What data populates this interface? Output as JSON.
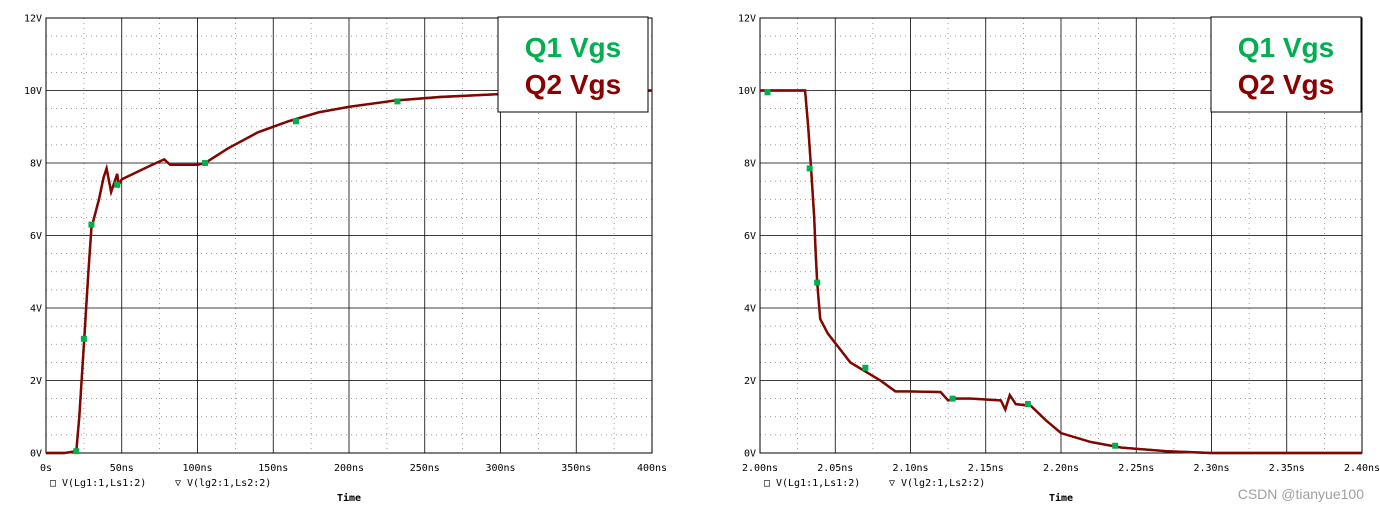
{
  "watermark": "CSDN @tianyue100",
  "colors": {
    "q1": "#00b050",
    "q2": "#8b0000",
    "grid": "#000000"
  },
  "chart_data": [
    {
      "type": "line",
      "xlabel": "Time",
      "ylim": [
        0,
        12
      ],
      "xlim": [
        0,
        400
      ],
      "x_tick_labels": [
        "0s",
        "50ns",
        "100ns",
        "150ns",
        "200ns",
        "250ns",
        "300ns",
        "350ns",
        "400ns"
      ],
      "y_tick_labels": [
        "0V",
        "2V",
        "4V",
        "6V",
        "8V",
        "10V",
        "12V"
      ],
      "bottom_legend": [
        {
          "symbol": "□",
          "text": "V(Lg1:1,Ls1:2)"
        },
        {
          "symbol": "▽",
          "text": "V(lg2:1,Ls2:2)"
        }
      ],
      "inset_labels": [
        "Q1 Vgs",
        "Q2 Vgs"
      ],
      "series": [
        {
          "name": "V(Lg1:1,Ls1:2)",
          "x": [
            0,
            12,
            20,
            22,
            25,
            28,
            30,
            35,
            38,
            40,
            43,
            45,
            47,
            48,
            50,
            60,
            70,
            78,
            82,
            90,
            95,
            100,
            105,
            120,
            140,
            160,
            180,
            200,
            230,
            260,
            300,
            350,
            400
          ],
          "y": [
            0,
            0,
            0.05,
            1.0,
            3.0,
            5.0,
            6.2,
            7.0,
            7.6,
            7.85,
            7.2,
            7.45,
            7.7,
            7.4,
            7.55,
            7.75,
            7.95,
            8.1,
            7.95,
            7.95,
            7.95,
            7.95,
            8.0,
            8.4,
            8.85,
            9.15,
            9.4,
            9.55,
            9.72,
            9.82,
            9.9,
            9.95,
            10.0
          ]
        },
        {
          "name": "V(lg2:1,Ls2:2)",
          "x": [
            0,
            12,
            20,
            22,
            25,
            28,
            30,
            35,
            38,
            40,
            43,
            45,
            47,
            48,
            50,
            60,
            70,
            78,
            82,
            90,
            95,
            100,
            105,
            120,
            140,
            160,
            180,
            200,
            230,
            260,
            300,
            350,
            400
          ],
          "y": [
            0,
            0,
            0.05,
            1.0,
            3.0,
            5.0,
            6.2,
            7.0,
            7.6,
            7.85,
            7.2,
            7.45,
            7.7,
            7.4,
            7.55,
            7.75,
            7.95,
            8.1,
            7.95,
            7.95,
            7.95,
            7.95,
            8.0,
            8.4,
            8.85,
            9.15,
            9.4,
            9.55,
            9.72,
            9.82,
            9.9,
            9.95,
            10.0
          ]
        }
      ],
      "markers": {
        "x": [
          20,
          25,
          30,
          47,
          105,
          165,
          232
        ],
        "y": [
          0.05,
          3.15,
          6.3,
          7.4,
          8.0,
          9.15,
          9.7
        ]
      }
    },
    {
      "type": "line",
      "xlabel": "Time",
      "ylim": [
        0,
        12
      ],
      "xlim": [
        2.0,
        2.4
      ],
      "x_tick_labels": [
        "2.00ns",
        "2.05ns",
        "2.10ns",
        "2.15ns",
        "2.20ns",
        "2.25ns",
        "2.30ns",
        "2.35ns",
        "2.40ns"
      ],
      "y_tick_labels": [
        "0V",
        "2V",
        "4V",
        "6V",
        "8V",
        "10V",
        "12V"
      ],
      "bottom_legend": [
        {
          "symbol": "□",
          "text": "V(Lg1:1,Ls1:2)"
        },
        {
          "symbol": "▽",
          "text": "V(lg2:1,Ls2:2)"
        }
      ],
      "inset_labels": [
        "Q1 Vgs",
        "Q2 Vgs"
      ],
      "series": [
        {
          "name": "V(Lg1:1,Ls1:2)",
          "x": [
            2.0,
            2.03,
            2.032,
            2.034,
            2.036,
            2.037,
            2.038,
            2.04,
            2.045,
            2.06,
            2.08,
            2.09,
            2.1,
            2.12,
            2.125,
            2.13,
            2.14,
            2.16,
            2.163,
            2.166,
            2.17,
            2.18,
            2.19,
            2.2,
            2.22,
            2.24,
            2.27,
            2.3,
            2.35,
            2.4
          ],
          "y": [
            10.0,
            10.0,
            9.0,
            7.8,
            6.5,
            5.5,
            4.7,
            3.7,
            3.3,
            2.5,
            2.0,
            1.7,
            1.7,
            1.68,
            1.45,
            1.5,
            1.5,
            1.45,
            1.2,
            1.6,
            1.35,
            1.3,
            0.9,
            0.55,
            0.3,
            0.15,
            0.05,
            0.0,
            0.0,
            0.0
          ]
        },
        {
          "name": "V(lg2:1,Ls2:2)",
          "x": [
            2.0,
            2.03,
            2.032,
            2.034,
            2.036,
            2.037,
            2.038,
            2.04,
            2.045,
            2.06,
            2.08,
            2.09,
            2.1,
            2.12,
            2.125,
            2.13,
            2.14,
            2.16,
            2.163,
            2.166,
            2.17,
            2.18,
            2.19,
            2.2,
            2.22,
            2.24,
            2.27,
            2.3,
            2.35,
            2.4
          ],
          "y": [
            10.0,
            10.0,
            9.0,
            7.8,
            6.5,
            5.5,
            4.7,
            3.7,
            3.3,
            2.5,
            2.0,
            1.7,
            1.7,
            1.68,
            1.45,
            1.5,
            1.5,
            1.45,
            1.2,
            1.6,
            1.35,
            1.3,
            0.9,
            0.55,
            0.3,
            0.15,
            0.05,
            0.0,
            0.0,
            0.0
          ]
        }
      ],
      "markers": {
        "x": [
          2.005,
          2.033,
          2.038,
          2.07,
          2.128,
          2.178,
          2.236
        ],
        "y": [
          9.95,
          7.85,
          4.7,
          2.35,
          1.5,
          1.35,
          0.2
        ]
      }
    }
  ]
}
